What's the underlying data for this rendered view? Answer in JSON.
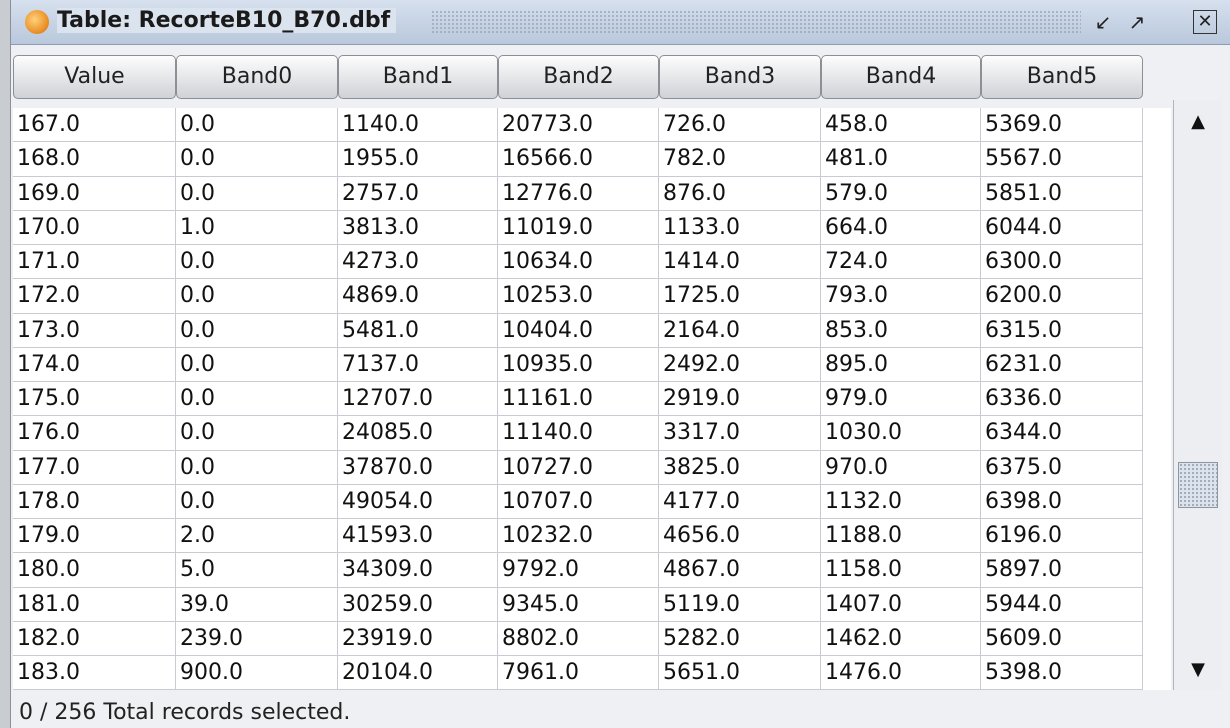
{
  "window": {
    "title": "Table: RecorteB10_B70.dbf"
  },
  "table": {
    "columns": [
      "Value",
      "Band0",
      "Band1",
      "Band2",
      "Band3",
      "Band4",
      "Band5"
    ],
    "rows": [
      [
        "167.0",
        "0.0",
        "1140.0",
        "20773.0",
        "726.0",
        "458.0",
        "5369.0"
      ],
      [
        "168.0",
        "0.0",
        "1955.0",
        "16566.0",
        "782.0",
        "481.0",
        "5567.0"
      ],
      [
        "169.0",
        "0.0",
        "2757.0",
        "12776.0",
        "876.0",
        "579.0",
        "5851.0"
      ],
      [
        "170.0",
        "1.0",
        "3813.0",
        "11019.0",
        "1133.0",
        "664.0",
        "6044.0"
      ],
      [
        "171.0",
        "0.0",
        "4273.0",
        "10634.0",
        "1414.0",
        "724.0",
        "6300.0"
      ],
      [
        "172.0",
        "0.0",
        "4869.0",
        "10253.0",
        "1725.0",
        "793.0",
        "6200.0"
      ],
      [
        "173.0",
        "0.0",
        "5481.0",
        "10404.0",
        "2164.0",
        "853.0",
        "6315.0"
      ],
      [
        "174.0",
        "0.0",
        "7137.0",
        "10935.0",
        "2492.0",
        "895.0",
        "6231.0"
      ],
      [
        "175.0",
        "0.0",
        "12707.0",
        "11161.0",
        "2919.0",
        "979.0",
        "6336.0"
      ],
      [
        "176.0",
        "0.0",
        "24085.0",
        "11140.0",
        "3317.0",
        "1030.0",
        "6344.0"
      ],
      [
        "177.0",
        "0.0",
        "37870.0",
        "10727.0",
        "3825.0",
        "970.0",
        "6375.0"
      ],
      [
        "178.0",
        "0.0",
        "49054.0",
        "10707.0",
        "4177.0",
        "1132.0",
        "6398.0"
      ],
      [
        "179.0",
        "2.0",
        "41593.0",
        "10232.0",
        "4656.0",
        "1188.0",
        "6196.0"
      ],
      [
        "180.0",
        "5.0",
        "34309.0",
        "9792.0",
        "4867.0",
        "1158.0",
        "5897.0"
      ],
      [
        "181.0",
        "39.0",
        "30259.0",
        "9345.0",
        "5119.0",
        "1407.0",
        "5944.0"
      ],
      [
        "182.0",
        "239.0",
        "23919.0",
        "8802.0",
        "5282.0",
        "1462.0",
        "5609.0"
      ],
      [
        "183.0",
        "900.0",
        "20104.0",
        "7961.0",
        "5651.0",
        "1476.0",
        "5398.0"
      ]
    ]
  },
  "status": "0 / 256 Total records selected."
}
